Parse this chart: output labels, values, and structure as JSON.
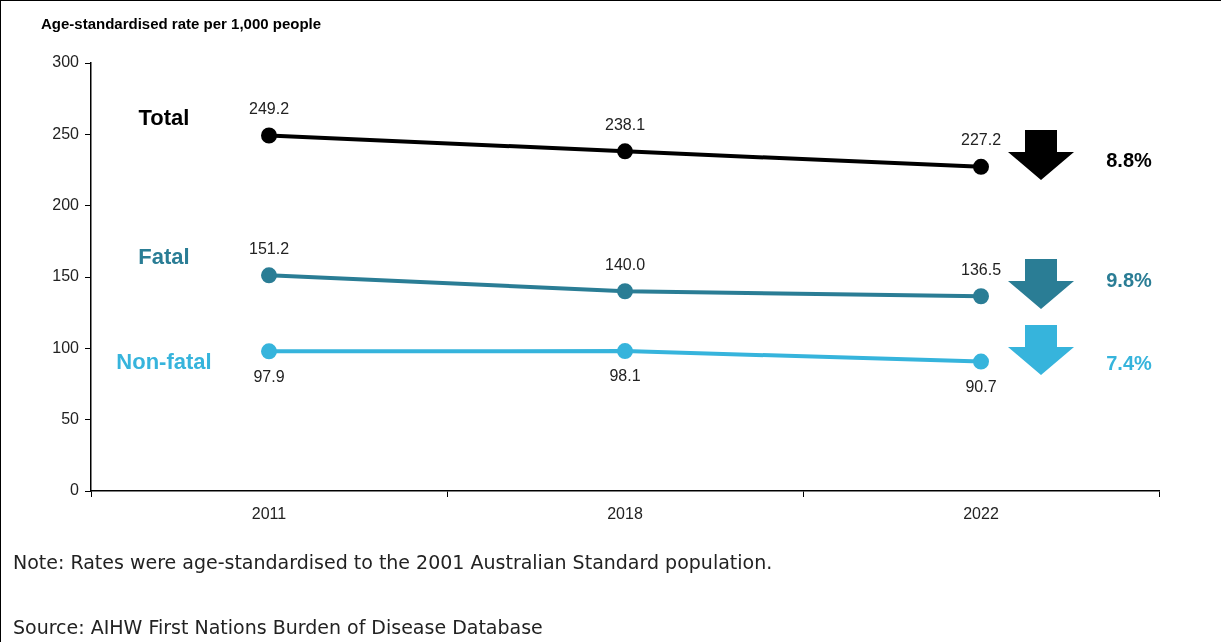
{
  "chart_data": {
    "type": "line",
    "ylabel": "Age-standardised rate per 1,000 people",
    "categories": [
      "2011",
      "2018",
      "2022"
    ],
    "series": [
      {
        "name": "Total",
        "color": "#000000",
        "values": [
          249.2,
          238.1,
          227.2
        ],
        "value_labels": [
          "249.2",
          "238.1",
          "227.2"
        ]
      },
      {
        "name": "Fatal",
        "color": "#2a7d95",
        "values": [
          151.2,
          140.0,
          136.5
        ],
        "value_labels": [
          "151.2",
          "140.0",
          "136.5"
        ]
      },
      {
        "name": "Non-fatal",
        "color": "#36b4dc",
        "values": [
          97.9,
          98.1,
          90.7
        ],
        "value_labels": [
          "97.9",
          "98.1",
          "90.7"
        ]
      }
    ],
    "ylim": [
      0,
      300
    ],
    "yticks": [
      0,
      50,
      100,
      150,
      200,
      250,
      300
    ],
    "grid": false,
    "legend": false,
    "marker": "circle",
    "line_style": "solid",
    "annotations": [
      "8.8%",
      "9.8%",
      "7.4%",
      "Note: Rates were age-standardised to the 2001 Australian Standard population.",
      "Source: AIHW First Nations Burden of Disease Database"
    ]
  }
}
